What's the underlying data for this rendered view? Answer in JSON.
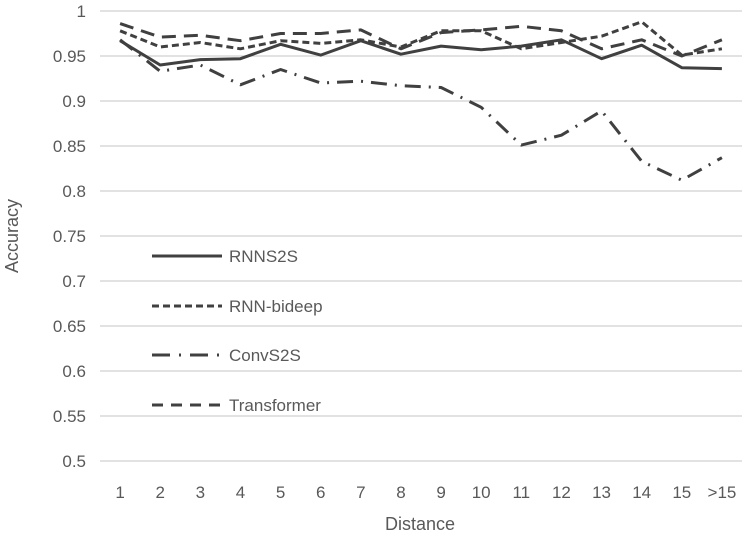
{
  "chart_data": {
    "type": "line",
    "title": "",
    "xlabel": "Distance",
    "ylabel": "Accuracy",
    "ylim": [
      0.5,
      1.0
    ],
    "yticks": [
      "0.5",
      "0.55",
      "0.6",
      "0.65",
      "0.7",
      "0.75",
      "0.8",
      "0.85",
      "0.9",
      "0.95",
      "1"
    ],
    "categories": [
      "1",
      "2",
      "3",
      "4",
      "5",
      "6",
      "7",
      "8",
      "9",
      "10",
      "11",
      "12",
      "13",
      "14",
      "15",
      ">15"
    ],
    "grid": true,
    "legend_position": "inside-lower-left",
    "series": [
      {
        "name": "RNNS2S",
        "style": "solid",
        "values": [
          0.967,
          0.94,
          0.946,
          0.947,
          0.963,
          0.951,
          0.967,
          0.952,
          0.961,
          0.957,
          0.961,
          0.968,
          0.947,
          0.962,
          0.937,
          0.936
        ]
      },
      {
        "name": "RNN-bideep",
        "style": "short-dash",
        "values": [
          0.978,
          0.96,
          0.965,
          0.958,
          0.967,
          0.964,
          0.968,
          0.96,
          0.978,
          0.978,
          0.958,
          0.965,
          0.972,
          0.988,
          0.951,
          0.958
        ]
      },
      {
        "name": "ConvS2S",
        "style": "dash-dot",
        "values": [
          0.968,
          0.933,
          0.94,
          0.918,
          0.935,
          0.92,
          0.922,
          0.917,
          0.915,
          0.893,
          0.851,
          0.862,
          0.889,
          0.833,
          0.812,
          0.837
        ]
      },
      {
        "name": "Transformer",
        "style": "long-dash",
        "values": [
          0.986,
          0.971,
          0.973,
          0.967,
          0.975,
          0.975,
          0.979,
          0.958,
          0.976,
          0.979,
          0.983,
          0.978,
          0.958,
          0.968,
          0.95,
          0.968
        ]
      }
    ]
  },
  "colors": {
    "line": "#404040",
    "grid": "#d9d9d9",
    "text": "#595959"
  }
}
